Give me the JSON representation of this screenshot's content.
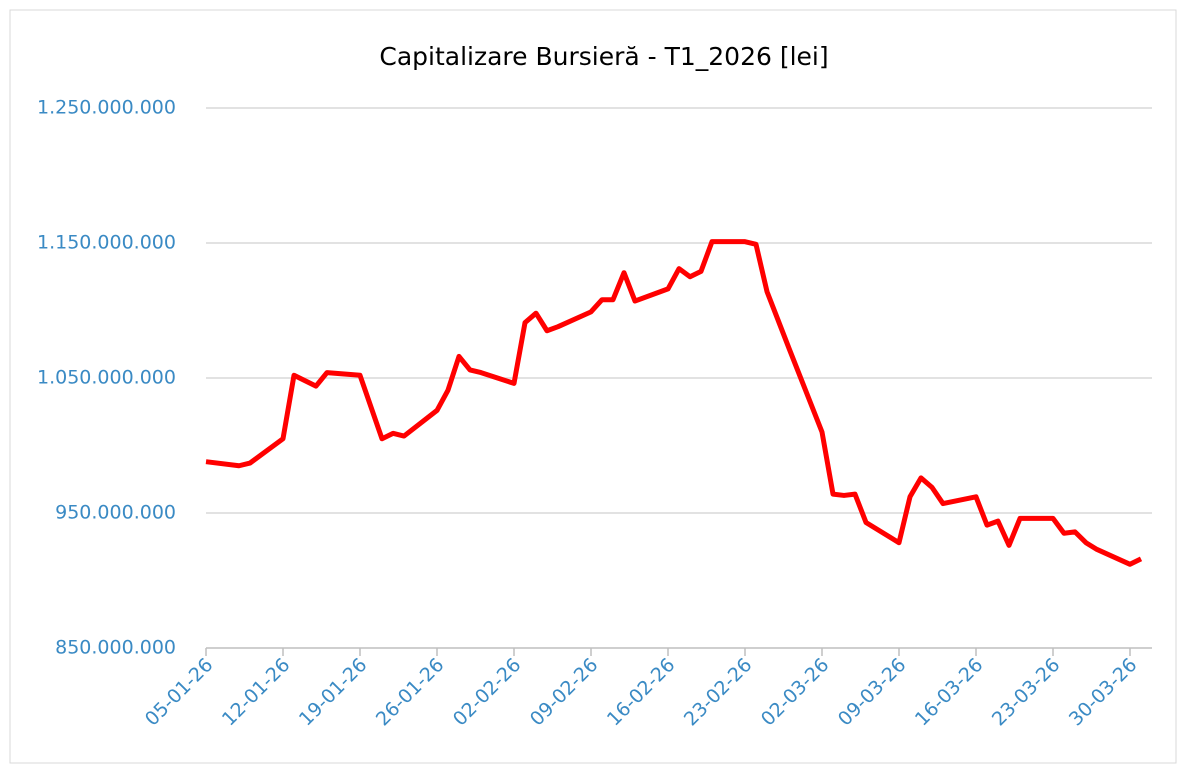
{
  "chart_data": {
    "type": "line",
    "title": "Capitalizare Bursieră - T1_2026 [lei]",
    "x": [
      "05-01-26",
      "08-01-26",
      "09-01-26",
      "12-01-26",
      "13-01-26",
      "15-01-26",
      "16-01-26",
      "19-01-26",
      "21-01-26",
      "22-01-26",
      "23-01-26",
      "26-01-26",
      "27-01-26",
      "28-01-26",
      "29-01-26",
      "30-01-26",
      "02-02-26",
      "03-02-26",
      "04-02-26",
      "05-02-26",
      "06-02-26",
      "09-02-26",
      "10-02-26",
      "11-02-26",
      "12-02-26",
      "13-02-26",
      "16-02-26",
      "17-02-26",
      "18-02-26",
      "19-02-26",
      "20-02-26",
      "23-02-26",
      "24-02-26",
      "25-02-26",
      "26-02-26",
      "27-02-26",
      "02-03-26",
      "03-03-26",
      "04-03-26",
      "05-03-26",
      "06-03-26",
      "09-03-26",
      "10-03-26",
      "11-03-26",
      "12-03-26",
      "13-03-26",
      "16-03-26",
      "17-03-26",
      "18-03-26",
      "19-03-26",
      "20-03-26",
      "23-03-26",
      "24-03-26",
      "25-03-26",
      "26-03-26",
      "27-03-26",
      "30-03-26",
      "31-03-26"
    ],
    "series": [
      {
        "name": "Capitalizare Bursieră",
        "color": "#ff0000",
        "values": [
          988000000,
          985000000,
          987000000,
          1005000000,
          1052000000,
          1044000000,
          1054000000,
          1052000000,
          1005000000,
          1009000000,
          1007000000,
          1026000000,
          1041000000,
          1066000000,
          1056000000,
          1054000000,
          1046000000,
          1091000000,
          1098000000,
          1085000000,
          1088000000,
          1099000000,
          1108000000,
          1108000000,
          1128000000,
          1107000000,
          1116000000,
          1131000000,
          1125000000,
          1129000000,
          1151000000,
          1151000000,
          1149000000,
          1114000000,
          1093000000,
          1072000000,
          1010000000,
          964000000,
          963000000,
          964000000,
          943000000,
          928000000,
          962000000,
          976000000,
          969000000,
          957000000,
          962000000,
          941000000,
          944000000,
          926000000,
          946000000,
          946000000,
          935000000,
          936000000,
          928000000,
          923000000,
          912000000,
          916000000
        ]
      }
    ],
    "xlim": [
      "05-01-26",
      "01-04-26"
    ],
    "xticks": [
      "05-01-26",
      "12-01-26",
      "19-01-26",
      "26-01-26",
      "02-02-26",
      "09-02-26",
      "16-02-26",
      "23-02-26",
      "02-03-26",
      "09-03-26",
      "16-03-26",
      "23-03-26",
      "30-03-26"
    ],
    "ylim": [
      850000000,
      1250000000
    ],
    "yticks": [
      {
        "value": 850000000,
        "label": "850.000.000"
      },
      {
        "value": 950000000,
        "label": "950.000.000"
      },
      {
        "value": 1050000000,
        "label": "1.050.000.000"
      },
      {
        "value": 1150000000,
        "label": "1.150.000.000"
      },
      {
        "value": 1250000000,
        "label": "1.250.000.000"
      }
    ],
    "grid": true
  }
}
